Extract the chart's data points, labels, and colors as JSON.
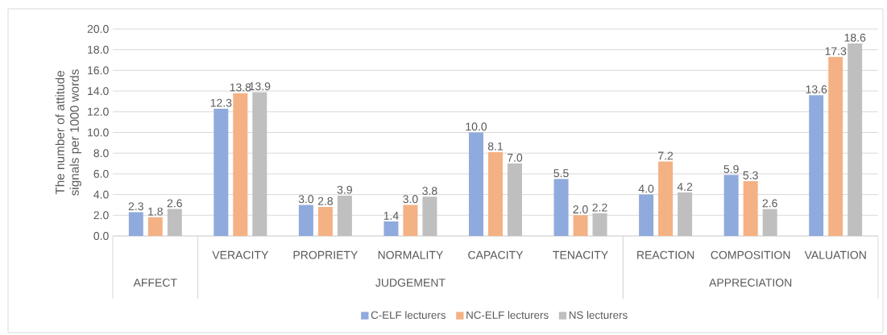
{
  "chart_data": {
    "type": "bar",
    "ylabel": "The number of attitude signals per 1000 words",
    "categories": [
      null,
      "VERACITY",
      "PROPRIETY",
      "NORMALITY",
      "CAPACITY",
      "TENACITY",
      "REACTION",
      "COMPOSITION",
      "VALUATION"
    ],
    "annotations": [
      "AFFECT",
      "JUDGEMENT",
      "APPRECIATION"
    ],
    "series": [
      {
        "name": "C-ELF lecturers",
        "color": "#8faadc",
        "values": [
          2.3,
          12.3,
          3.0,
          1.4,
          10.0,
          5.5,
          4.0,
          5.9,
          13.6
        ],
        "value_labels": [
          "2.3",
          "12.3",
          "3.0",
          "1.4",
          "10.0",
          "5.5",
          "4.0",
          "5.9",
          "13.6"
        ]
      },
      {
        "name": "NC-ELF lecturers",
        "color": "#f4b183",
        "values": [
          1.8,
          13.8,
          2.8,
          3.0,
          8.1,
          2.0,
          7.2,
          5.3,
          17.3
        ],
        "value_labels": [
          "1.8",
          "13.8",
          "2.8",
          "3.0",
          "8.1",
          "2.0",
          "7.2",
          "5.3",
          "17.3"
        ]
      },
      {
        "name": "NS lecturers",
        "color": "#bfbfbf",
        "values": [
          2.6,
          13.9,
          3.9,
          3.8,
          7.0,
          2.2,
          4.2,
          2.6,
          18.6
        ],
        "value_labels": [
          "2.6",
          "13.9",
          "3.9",
          "3.8",
          "7.0",
          "2.2",
          "4.2",
          "2.6",
          "18.6"
        ]
      }
    ],
    "ylim": [
      0,
      20
    ],
    "yticks": [
      {
        "value": 0,
        "label": "0.0"
      },
      {
        "value": 2,
        "label": "2.0"
      },
      {
        "value": 4,
        "label": "4.0"
      },
      {
        "value": 6,
        "label": "6.0"
      },
      {
        "value": 8,
        "label": "8.0"
      },
      {
        "value": 10,
        "label": "10.0"
      },
      {
        "value": 12,
        "label": "12.0"
      },
      {
        "value": 14,
        "label": "14.0"
      },
      {
        "value": 16,
        "label": "16.0"
      },
      {
        "value": 18,
        "label": "18.0"
      },
      {
        "value": 20,
        "label": "20.0"
      }
    ],
    "grid": "y",
    "legend": "bottom"
  }
}
